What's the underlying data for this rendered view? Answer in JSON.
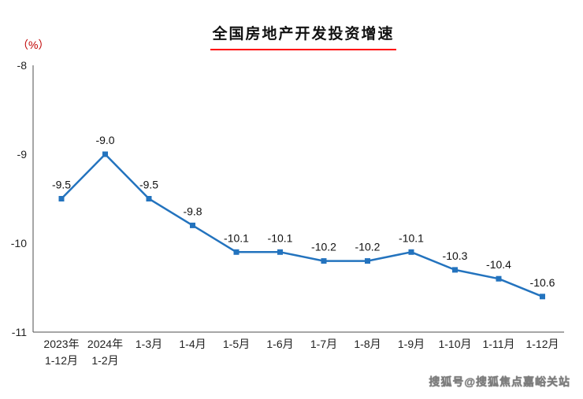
{
  "chart_data": {
    "type": "line",
    "title": "全国房地产开发投资增速",
    "ylabel": "（%）",
    "categories": [
      "2023年\n1-12月",
      "2024年\n1-2月",
      "1-3月",
      "1-4月",
      "1-5月",
      "1-6月",
      "1-7月",
      "1-8月",
      "1-9月",
      "1-10月",
      "1-11月",
      "1-12月"
    ],
    "values": [
      -9.5,
      -9.0,
      -9.5,
      -9.8,
      -10.1,
      -10.1,
      -10.2,
      -10.2,
      -10.1,
      -10.3,
      -10.4,
      -10.6
    ],
    "point_labels": [
      "-9.5",
      "-9.0",
      "-9.5",
      "-9.8",
      "-10.1",
      "-10.1",
      "-10.2",
      "-10.2",
      "-10.1",
      "-10.3",
      "-10.4",
      "-10.6"
    ],
    "ylim": [
      -11,
      -8
    ],
    "yticks": [
      -8,
      -9,
      -10,
      -11
    ],
    "grid": false,
    "legend": "none",
    "line_color": "#2373be",
    "marker": "square",
    "title_underline_color": "#ff0000",
    "ylabel_color": "#c00000",
    "axis_color": "#4d4d4d"
  },
  "watermark": "搜狐号@搜狐焦点嘉峪关站"
}
